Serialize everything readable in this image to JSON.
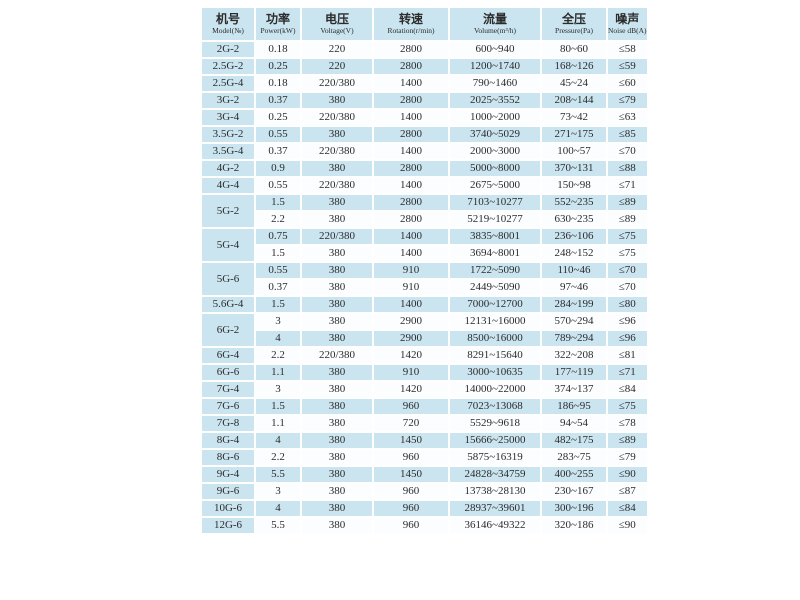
{
  "colors": {
    "page_bg": "#ffffff",
    "cell_blue": "#cbe5f0",
    "cell_light": "#fcfdfe",
    "text": "#2b2b2b"
  },
  "table": {
    "columns": [
      {
        "zh": "机号",
        "en": "Model(№)"
      },
      {
        "zh": "功率",
        "en": "Power(kW)"
      },
      {
        "zh": "电压",
        "en": "Voltage(V)"
      },
      {
        "zh": "转速",
        "en": "Rotation(r/min)"
      },
      {
        "zh": "流量",
        "en": "Volume(m³/h)"
      },
      {
        "zh": "全压",
        "en": "Pressure(Pa)"
      },
      {
        "zh": "噪声",
        "en": "Noise dB(A)"
      }
    ],
    "rows": [
      {
        "model": "2G-2",
        "model_span": 1,
        "power": "0.18",
        "voltage": "220",
        "rotation": "2800",
        "volume": "600~940",
        "pressure": "80~60",
        "noise": "≤58"
      },
      {
        "model": "2.5G-2",
        "model_span": 1,
        "power": "0.25",
        "voltage": "220",
        "rotation": "2800",
        "volume": "1200~1740",
        "pressure": "168~126",
        "noise": "≤59"
      },
      {
        "model": "2.5G-4",
        "model_span": 1,
        "power": "0.18",
        "voltage": "220/380",
        "rotation": "1400",
        "volume": "790~1460",
        "pressure": "45~24",
        "noise": "≤60"
      },
      {
        "model": "3G-2",
        "model_span": 1,
        "power": "0.37",
        "voltage": "380",
        "rotation": "2800",
        "volume": "2025~3552",
        "pressure": "208~144",
        "noise": "≤79"
      },
      {
        "model": "3G-4",
        "model_span": 1,
        "power": "0.25",
        "voltage": "220/380",
        "rotation": "1400",
        "volume": "1000~2000",
        "pressure": "73~42",
        "noise": "≤63"
      },
      {
        "model": "3.5G-2",
        "model_span": 1,
        "power": "0.55",
        "voltage": "380",
        "rotation": "2800",
        "volume": "3740~5029",
        "pressure": "271~175",
        "noise": "≤85"
      },
      {
        "model": "3.5G-4",
        "model_span": 1,
        "power": "0.37",
        "voltage": "220/380",
        "rotation": "1400",
        "volume": "2000~3000",
        "pressure": "100~57",
        "noise": "≤70"
      },
      {
        "model": "4G-2",
        "model_span": 1,
        "power": "0.9",
        "voltage": "380",
        "rotation": "2800",
        "volume": "5000~8000",
        "pressure": "370~131",
        "noise": "≤88"
      },
      {
        "model": "4G-4",
        "model_span": 1,
        "power": "0.55",
        "voltage": "220/380",
        "rotation": "1400",
        "volume": "2675~5000",
        "pressure": "150~98",
        "noise": "≤71"
      },
      {
        "model": "5G-2",
        "model_span": 2,
        "power": "1.5",
        "voltage": "380",
        "rotation": "2800",
        "volume": "7103~10277",
        "pressure": "552~235",
        "noise": "≤89"
      },
      {
        "model": null,
        "power": "2.2",
        "voltage": "380",
        "rotation": "2800",
        "volume": "5219~10277",
        "pressure": "630~235",
        "noise": "≤89"
      },
      {
        "model": "5G-4",
        "model_span": 2,
        "power": "0.75",
        "voltage": "220/380",
        "rotation": "1400",
        "volume": "3835~8001",
        "pressure": "236~106",
        "noise": "≤75"
      },
      {
        "model": null,
        "power": "1.5",
        "voltage": "380",
        "rotation": "1400",
        "volume": "3694~8001",
        "pressure": "248~152",
        "noise": "≤75"
      },
      {
        "model": "5G-6",
        "model_span": 2,
        "power": "0.55",
        "voltage": "380",
        "rotation": "910",
        "volume": "1722~5090",
        "pressure": "110~46",
        "noise": "≤70"
      },
      {
        "model": null,
        "power": "0.37",
        "voltage": "380",
        "rotation": "910",
        "volume": "2449~5090",
        "pressure": "97~46",
        "noise": "≤70"
      },
      {
        "model": "5.6G-4",
        "model_span": 1,
        "power": "1.5",
        "voltage": "380",
        "rotation": "1400",
        "volume": "7000~12700",
        "pressure": "284~199",
        "noise": "≤80"
      },
      {
        "model": "6G-2",
        "model_span": 2,
        "power": "3",
        "voltage": "380",
        "rotation": "2900",
        "volume": "12131~16000",
        "pressure": "570~294",
        "noise": "≤96"
      },
      {
        "model": null,
        "power": "4",
        "voltage": "380",
        "rotation": "2900",
        "volume": "8500~16000",
        "pressure": "789~294",
        "noise": "≤96"
      },
      {
        "model": "6G-4",
        "model_span": 1,
        "power": "2.2",
        "voltage": "220/380",
        "rotation": "1420",
        "volume": "8291~15640",
        "pressure": "322~208",
        "noise": "≤81"
      },
      {
        "model": "6G-6",
        "model_span": 1,
        "power": "1.1",
        "voltage": "380",
        "rotation": "910",
        "volume": "3000~10635",
        "pressure": "177~119",
        "noise": "≤71"
      },
      {
        "model": "7G-4",
        "model_span": 1,
        "power": "3",
        "voltage": "380",
        "rotation": "1420",
        "volume": "14000~22000",
        "pressure": "374~137",
        "noise": "≤84"
      },
      {
        "model": "7G-6",
        "model_span": 1,
        "power": "1.5",
        "voltage": "380",
        "rotation": "960",
        "volume": "7023~13068",
        "pressure": "186~95",
        "noise": "≤75"
      },
      {
        "model": "7G-8",
        "model_span": 1,
        "power": "1.1",
        "voltage": "380",
        "rotation": "720",
        "volume": "5529~9618",
        "pressure": "94~54",
        "noise": "≤78"
      },
      {
        "model": "8G-4",
        "model_span": 1,
        "power": "4",
        "voltage": "380",
        "rotation": "1450",
        "volume": "15666~25000",
        "pressure": "482~175",
        "noise": "≤89"
      },
      {
        "model": "8G-6",
        "model_span": 1,
        "power": "2.2",
        "voltage": "380",
        "rotation": "960",
        "volume": "5875~16319",
        "pressure": "283~75",
        "noise": "≤79"
      },
      {
        "model": "9G-4",
        "model_span": 1,
        "power": "5.5",
        "voltage": "380",
        "rotation": "1450",
        "volume": "24828~34759",
        "pressure": "400~255",
        "noise": "≤90"
      },
      {
        "model": "9G-6",
        "model_span": 1,
        "power": "3",
        "voltage": "380",
        "rotation": "960",
        "volume": "13738~28130",
        "pressure": "230~167",
        "noise": "≤87"
      },
      {
        "model": "10G-6",
        "model_span": 1,
        "power": "4",
        "voltage": "380",
        "rotation": "960",
        "volume": "28937~39601",
        "pressure": "300~196",
        "noise": "≤84"
      },
      {
        "model": "12G-6",
        "model_span": 1,
        "power": "5.5",
        "voltage": "380",
        "rotation": "960",
        "volume": "36146~49322",
        "pressure": "320~186",
        "noise": "≤90"
      }
    ]
  }
}
